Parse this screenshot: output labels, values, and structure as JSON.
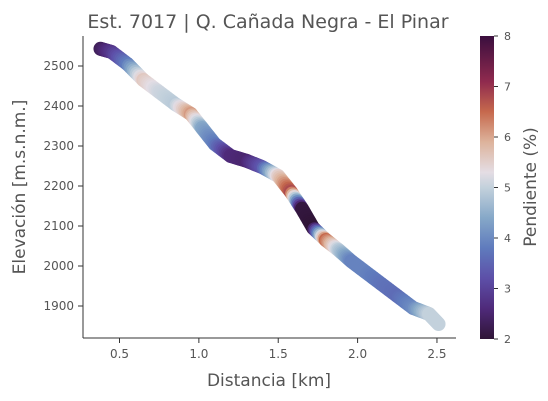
{
  "chart_data": {
    "type": "scatter",
    "title": "Est. 7017 | Q. Cañada Negra - El Pinar",
    "xlabel": "Distancia [km]",
    "ylabel": "Elevación [m.s.n.m.]",
    "xlim": [
      0.27,
      2.62
    ],
    "ylim": [
      1820,
      2575
    ],
    "xticks": [
      0.5,
      1.0,
      1.5,
      2.0,
      2.5
    ],
    "xtick_labels": [
      "0.5",
      "1.0",
      "1.5",
      "2.0",
      "2.5"
    ],
    "yticks": [
      1900,
      2000,
      2100,
      2200,
      2300,
      2400,
      2500
    ],
    "ytick_labels": [
      "1900",
      "2000",
      "2100",
      "2200",
      "2300",
      "2400",
      "2500"
    ],
    "grid": false,
    "colorbar": {
      "label": "Pendiente (%)",
      "range": [
        2,
        8
      ],
      "ticks": [
        2,
        3,
        4,
        5,
        6,
        7,
        8
      ],
      "tick_labels": [
        "2",
        "3",
        "4",
        "5",
        "6",
        "7",
        "8"
      ],
      "colormap": "twilight_shifted"
    },
    "profile": {
      "x": [
        0.38,
        0.45,
        0.55,
        0.65,
        0.75,
        0.85,
        0.95,
        1.02,
        1.1,
        1.2,
        1.3,
        1.4,
        1.5,
        1.58,
        1.65,
        1.72,
        1.8,
        1.88,
        1.96,
        2.05,
        2.15,
        2.25,
        2.35,
        2.45,
        2.51
      ],
      "y": [
        2543,
        2535,
        2505,
        2465,
        2435,
        2405,
        2380,
        2345,
        2305,
        2275,
        2263,
        2247,
        2225,
        2185,
        2143,
        2095,
        2065,
        2040,
        2012,
        1985,
        1955,
        1925,
        1895,
        1880,
        1855
      ],
      "slope": [
        2.3,
        2.8,
        3.8,
        5.6,
        5.1,
        4.9,
        6.1,
        4.4,
        3.8,
        2.6,
        2.5,
        3.3,
        5.5,
        6.8,
        2.1,
        2.0,
        6.5,
        4.9,
        3.9,
        3.9,
        3.7,
        3.6,
        4.0,
        5.0,
        5.0
      ]
    }
  }
}
